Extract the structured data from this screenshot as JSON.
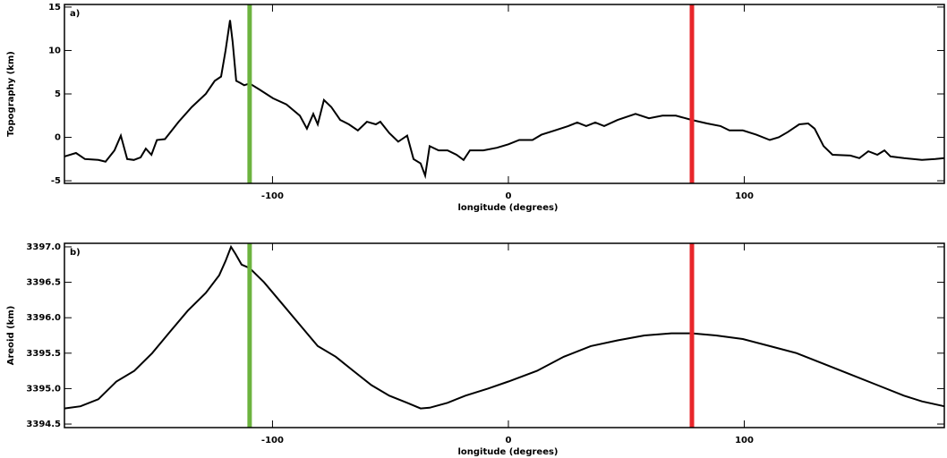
{
  "chart_data": [
    {
      "type": "line",
      "annotation": "a)",
      "ylabel": "Topography (km)",
      "xlabel": "longitude (degrees)",
      "color": "#000000",
      "x": [
        -188.2,
        -183.3,
        -179.5,
        -173.8,
        -170.8,
        -167.0,
        -164.3,
        -161.6,
        -158.8,
        -155.9,
        -153.7,
        -151.3,
        -149.0,
        -145.6,
        -139.8,
        -134.2,
        -128.3,
        -124.5,
        -121.8,
        -119.9,
        -118.0,
        -116.9,
        -115.4,
        -113.9,
        -112.0,
        -109.7,
        -105.5,
        -99.8,
        -94.1,
        -88.4,
        -85.4,
        -82.7,
        -80.8,
        -78.2,
        -75.1,
        -71.3,
        -67.6,
        -63.8,
        -60.0,
        -56.2,
        -54.3,
        -50.5,
        -46.7,
        -42.9,
        -40.2,
        -37.2,
        -35.3,
        -33.4,
        -29.6,
        -25.8,
        -22.0,
        -19.0,
        -16.3,
        -10.6,
        -4.9,
        0,
        4.6,
        10.2,
        14.0,
        19.7,
        25.4,
        29.2,
        33.0,
        36.8,
        40.6,
        46.3,
        53.9,
        59.6,
        65.3,
        71.0,
        77.8,
        84.2,
        89.9,
        93.7,
        99.4,
        105.1,
        110.8,
        114.6,
        118.4,
        123.3,
        127.1,
        129.8,
        133.6,
        137.4,
        145.0,
        148.8,
        152.6,
        156.4,
        159.4,
        162.0,
        167.7,
        175.3,
        181.0,
        184.8
      ],
      "values": [
        -2.2,
        -1.8,
        -2.5,
        -2.6,
        -2.8,
        -1.5,
        0.2,
        -2.5,
        -2.6,
        -2.3,
        -1.3,
        -2,
        -0.3,
        -0.2,
        1.8,
        3.5,
        5,
        6.5,
        7,
        10,
        13.5,
        11,
        6.5,
        6.3,
        6,
        6.2,
        5.5,
        4.5,
        3.8,
        2.5,
        1,
        2.7,
        1.5,
        4.3,
        3.5,
        2,
        1.5,
        0.8,
        1.8,
        1.5,
        1.8,
        0.5,
        -0.5,
        0.2,
        -2.5,
        -3,
        -4.4,
        -1,
        -1.5,
        -1.5,
        -2,
        -2.6,
        -1.5,
        -1.5,
        -1.2,
        -0.8,
        -0.3,
        -0.3,
        0.3,
        0.8,
        1.3,
        1.7,
        1.3,
        1.7,
        1.3,
        2,
        2.7,
        2.2,
        2.5,
        2.5,
        2,
        1.6,
        1.3,
        0.8,
        0.8,
        0.3,
        -0.3,
        0,
        0.6,
        1.5,
        1.6,
        1,
        -1,
        -2,
        -2.1,
        -2.4,
        -1.6,
        -2,
        -1.5,
        -2.2,
        -2.4,
        -2.6,
        -2.5,
        -2.4
      ],
      "xlim": [
        -188.2,
        184.8
      ],
      "xticks": [
        -100,
        0,
        100
      ],
      "ylim": [
        -5.3,
        15.3
      ],
      "yticks": [
        -5,
        0,
        5,
        10,
        15
      ],
      "vlines": [
        {
          "x": -109.7,
          "color": "#6cb33f"
        },
        {
          "x": 77.8,
          "color": "#e8262b"
        }
      ]
    },
    {
      "type": "line",
      "annotation": "b)",
      "ylabel": "Areoid (km)",
      "xlabel": "longitude (degrees)",
      "color": "#000000",
      "x": [
        -188.2,
        -181.4,
        -173.8,
        -166.2,
        -158.6,
        -151.0,
        -143.5,
        -135.9,
        -128.3,
        -122.6,
        -119.9,
        -117.6,
        -115.7,
        -113.1,
        -109.7,
        -103.6,
        -96.0,
        -88.4,
        -80.8,
        -73.2,
        -65.7,
        -58.1,
        -50.5,
        -42.9,
        -37.2,
        -33.4,
        -25.8,
        -18.2,
        -8.7,
        0,
        12.1,
        23.5,
        34.9,
        46.3,
        57.7,
        69.1,
        77.8,
        88.0,
        99.4,
        110.8,
        122.2,
        133.6,
        145.0,
        156.4,
        167.7,
        175.3,
        184.8
      ],
      "values": [
        3394.72,
        3394.75,
        3394.85,
        3395.1,
        3395.25,
        3395.5,
        3395.8,
        3396.1,
        3396.35,
        3396.6,
        3396.8,
        3397.0,
        3396.9,
        3396.75,
        3396.7,
        3396.5,
        3396.2,
        3395.9,
        3395.6,
        3395.45,
        3395.25,
        3395.05,
        3394.9,
        3394.8,
        3394.72,
        3394.73,
        3394.8,
        3394.9,
        3395.0,
        3395.1,
        3395.25,
        3395.45,
        3395.6,
        3395.68,
        3395.75,
        3395.78,
        3395.78,
        3395.75,
        3395.7,
        3395.6,
        3395.5,
        3395.35,
        3395.2,
        3395.05,
        3394.9,
        3394.82,
        3394.75
      ],
      "xlim": [
        -188.2,
        184.8
      ],
      "xticks": [
        -100,
        0,
        100
      ],
      "ylim": [
        3394.45,
        3397.05
      ],
      "yticks": [
        {
          "value": 3394.5,
          "label": "3394.5"
        },
        {
          "value": 3395.0,
          "label": "3395.0"
        },
        {
          "value": 3395.5,
          "label": "3395.5"
        },
        {
          "value": 3396.0,
          "label": "3396.0"
        },
        {
          "value": 3396.5,
          "label": "3396.5"
        },
        {
          "value": 3397.0,
          "label": "3397.0"
        }
      ],
      "vlines": [
        {
          "x": -109.7,
          "color": "#6cb33f"
        },
        {
          "x": 77.8,
          "color": "#e8262b"
        }
      ]
    }
  ]
}
